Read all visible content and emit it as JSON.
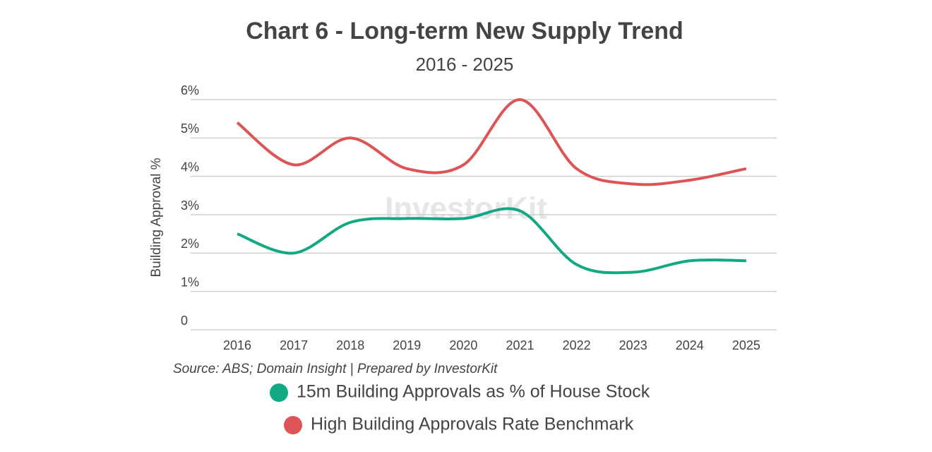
{
  "chart_data": {
    "type": "line",
    "title": "Chart 6 - Long-term New Supply Trend",
    "subtitle": "2016 - 2025",
    "y_label": "Building Approval %",
    "source": "Source: ABS; Domain Insight | Prepared by InvestorKit",
    "watermark": "InvestorKit",
    "categories": [
      "2016",
      "2017",
      "2018",
      "2019",
      "2020",
      "2021",
      "2022",
      "2023",
      "2024",
      "2025"
    ],
    "series": [
      {
        "name": "15m Building Approvals as % of House Stock",
        "color": "#13a884",
        "values": [
          2.5,
          2.0,
          2.8,
          2.9,
          2.9,
          3.1,
          1.7,
          1.5,
          1.8,
          1.8
        ]
      },
      {
        "name": "High Building Approvals Rate Benchmark",
        "color": "#de5456",
        "values": [
          5.4,
          4.3,
          5.0,
          4.2,
          4.3,
          6.0,
          4.2,
          3.8,
          3.9,
          4.2
        ]
      }
    ],
    "ylim": [
      0,
      6
    ],
    "yticks": [
      0,
      {
        "value": 1,
        "label": "1%"
      },
      {
        "value": 2,
        "label": "2%"
      },
      {
        "value": 3,
        "label": "3%"
      },
      {
        "value": 4,
        "label": "4%"
      },
      {
        "value": 5,
        "label": "5%"
      },
      {
        "value": 6,
        "label": "6%"
      }
    ],
    "grid": true,
    "smooth": true,
    "legend": "bottom"
  }
}
